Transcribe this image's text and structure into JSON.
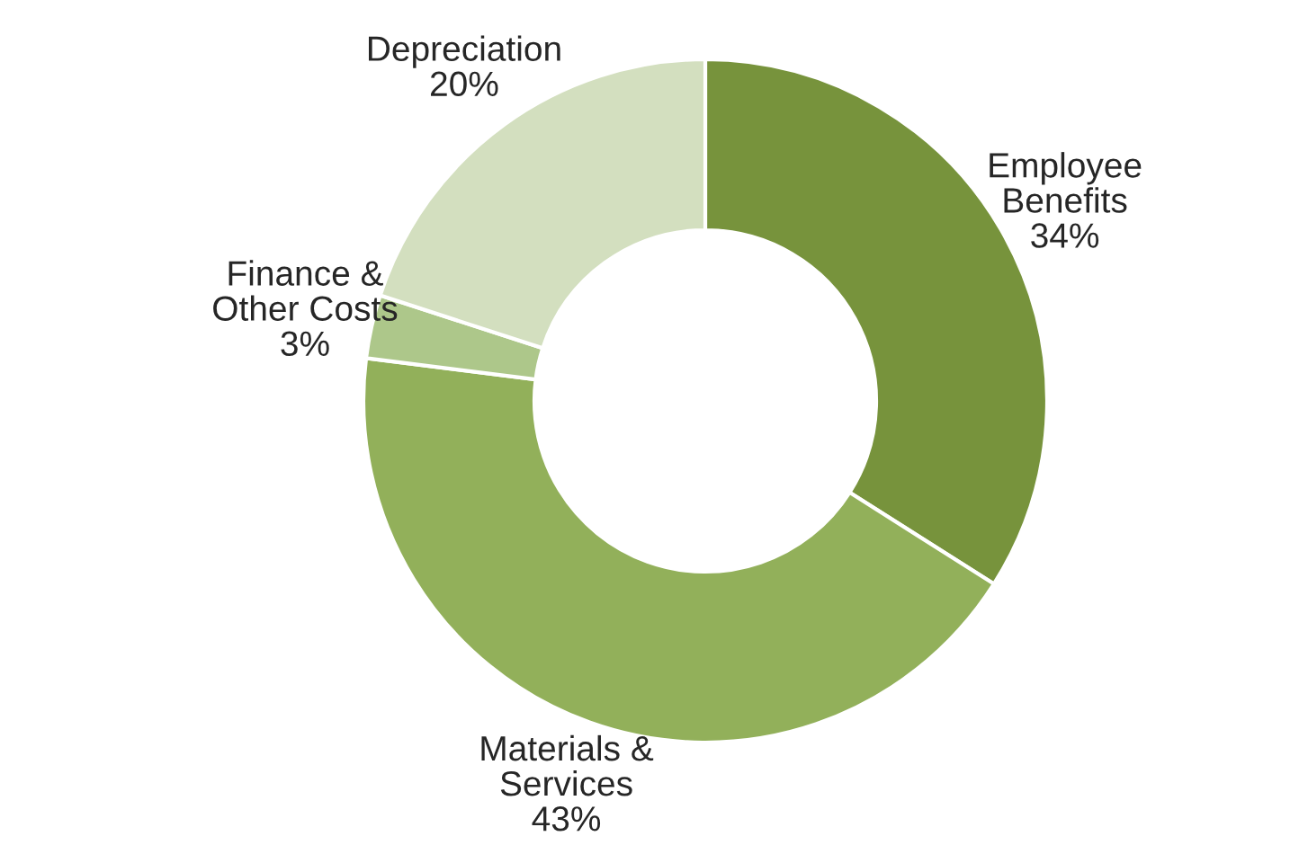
{
  "chart_data": {
    "type": "donut",
    "categories": [
      "Employee\nBenefits",
      "Materials &\nServices",
      "Finance &\nOther Costs",
      "Depreciation"
    ],
    "values": [
      34,
      43,
      3,
      20
    ],
    "value_labels": [
      "34%",
      "43%",
      "3%",
      "20%"
    ],
    "colors": [
      "#77933c",
      "#92b05a",
      "#adc78a",
      "#d3dfbf"
    ],
    "legend": false
  }
}
